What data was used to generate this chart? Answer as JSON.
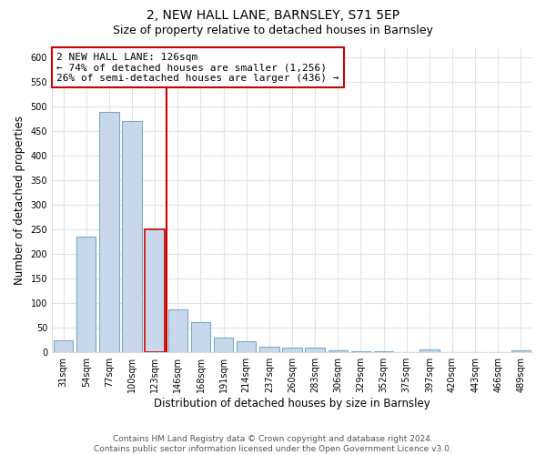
{
  "title": "2, NEW HALL LANE, BARNSLEY, S71 5EP",
  "subtitle": "Size of property relative to detached houses in Barnsley",
  "xlabel": "Distribution of detached houses by size in Barnsley",
  "ylabel": "Number of detached properties",
  "categories": [
    "31sqm",
    "54sqm",
    "77sqm",
    "100sqm",
    "123sqm",
    "146sqm",
    "168sqm",
    "191sqm",
    "214sqm",
    "237sqm",
    "260sqm",
    "283sqm",
    "306sqm",
    "329sqm",
    "352sqm",
    "375sqm",
    "397sqm",
    "420sqm",
    "443sqm",
    "466sqm",
    "489sqm"
  ],
  "values": [
    25,
    235,
    490,
    470,
    250,
    88,
    62,
    30,
    22,
    12,
    10,
    9,
    4,
    3,
    2,
    1,
    6,
    1,
    1,
    1,
    4
  ],
  "bar_color": "#c8d8ea",
  "bar_edge_color": "#7aaac8",
  "highlight_bar_index": 4,
  "highlight_edge_color": "#cc0000",
  "red_line_x": 4.5,
  "annotation_text": "2 NEW HALL LANE: 126sqm\n← 74% of detached houses are smaller (1,256)\n26% of semi-detached houses are larger (436) →",
  "annotation_box_facecolor": "#ffffff",
  "annotation_box_edgecolor": "#cc0000",
  "ylim": [
    0,
    620
  ],
  "yticks": [
    0,
    50,
    100,
    150,
    200,
    250,
    300,
    350,
    400,
    450,
    500,
    550,
    600
  ],
  "background_color": "#ffffff",
  "grid_color": "#dde4ee",
  "title_fontsize": 10,
  "subtitle_fontsize": 9,
  "axis_label_fontsize": 8.5,
  "tick_fontsize": 7,
  "annotation_fontsize": 8,
  "footer_fontsize": 6.5,
  "footer": "Contains HM Land Registry data © Crown copyright and database right 2024.\nContains public sector information licensed under the Open Government Licence v3.0."
}
